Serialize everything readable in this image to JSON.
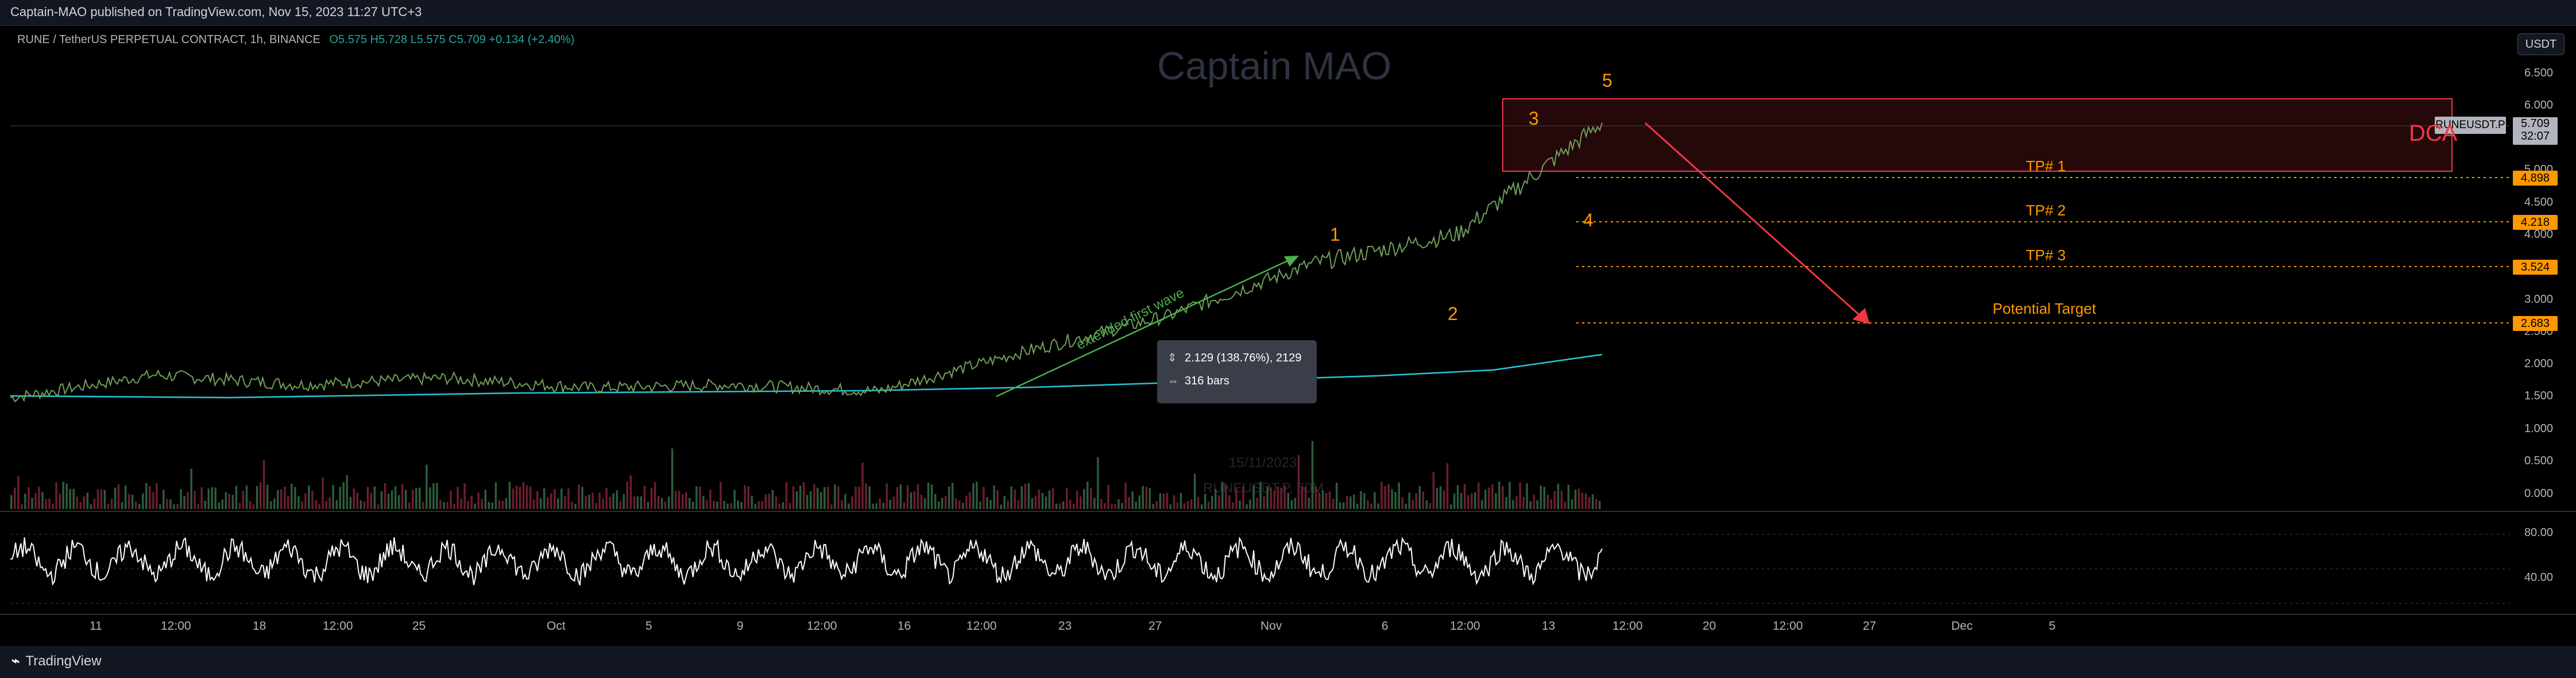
{
  "header": {
    "published": "Captain-MAO published on TradingView.com, Nov 15, 2023 11:27 UTC+3",
    "symbol": "RUNE / TetherUS PERPETUAL CONTRACT, 1h, BINANCE",
    "ohlc": "O5.575  H5.728  L5.575  C5.709  +0.134 (+2.40%)"
  },
  "watermark": {
    "author": "Captain MAO",
    "date": "15/11/2023",
    "symbol": "RUNEUSDT.P, 60M"
  },
  "currency_button": "USDT",
  "price_axis": [
    "6.500",
    "6.000",
    "5.500",
    "5.000",
    "4.500",
    "4.000",
    "3.500",
    "3.000",
    "2.500",
    "2.000",
    "1.500",
    "1.000",
    "0.500",
    "0.000"
  ],
  "price_badges": {
    "symbol_tag": "RUNEUSDT.P",
    "last_price": "5.709",
    "countdown": "32:07",
    "tp1": "4.898",
    "tp2": "4.218",
    "tp3": "3.524",
    "target": "2.683"
  },
  "annotations": {
    "dca": "DCA",
    "tp1": "TP# 1",
    "tp2": "TP# 2",
    "tp3": "TP# 3",
    "potential_target": "Potential Target",
    "extended_first_wave": "extended first wave",
    "wave1": "1",
    "wave2": "2",
    "wave3": "3",
    "wave4": "4",
    "wave5": "5"
  },
  "measure_tooltip": {
    "range": "2.129 (138.76%), 2129",
    "bars": "316 bars"
  },
  "rsi_axis": [
    "80.00",
    "40.00"
  ],
  "time_axis": [
    "11",
    "12:00",
    "18",
    "12:00",
    "25",
    "Oct",
    "5",
    "9",
    "12:00",
    "16",
    "12:00",
    "23",
    "27",
    "Nov",
    "6",
    "12:00",
    "13",
    "12:00",
    "20",
    "12:00",
    "27",
    "Dec",
    "5"
  ],
  "footer": {
    "brand": "TradingView"
  },
  "colors": {
    "background": "#000000",
    "up": "#26a69a",
    "orange": "#ff9800",
    "red": "#f23645",
    "green_arrow": "#4caf50",
    "ma": "#26c6da"
  },
  "chart_data": {
    "type": "line",
    "title": "RUNE / TetherUS PERPETUAL CONTRACT, 1h, BINANCE",
    "ylim": [
      0,
      6.5
    ],
    "y_ticks": [
      6.5,
      6.0,
      5.5,
      5.0,
      4.5,
      4.0,
      3.5,
      3.0,
      2.5,
      2.0,
      1.5,
      1.0,
      0.5,
      0.0
    ],
    "x": [
      "11",
      "18",
      "25",
      "Oct",
      "5",
      "9",
      "16",
      "23",
      "27",
      "Nov",
      "6",
      "13"
    ],
    "series": [
      {
        "values": [
          1.5,
          1.85,
          1.7,
          1.8,
          1.65,
          1.7,
          1.6,
          2.2,
          2.75,
          3.55,
          4.0,
          5.709
        ]
      }
    ],
    "levels": {
      "dca_zone": [
        4.95,
        6.1
      ],
      "tp1": 4.898,
      "tp2": 4.218,
      "tp3": 3.524,
      "potential_target": 2.683
    }
  }
}
